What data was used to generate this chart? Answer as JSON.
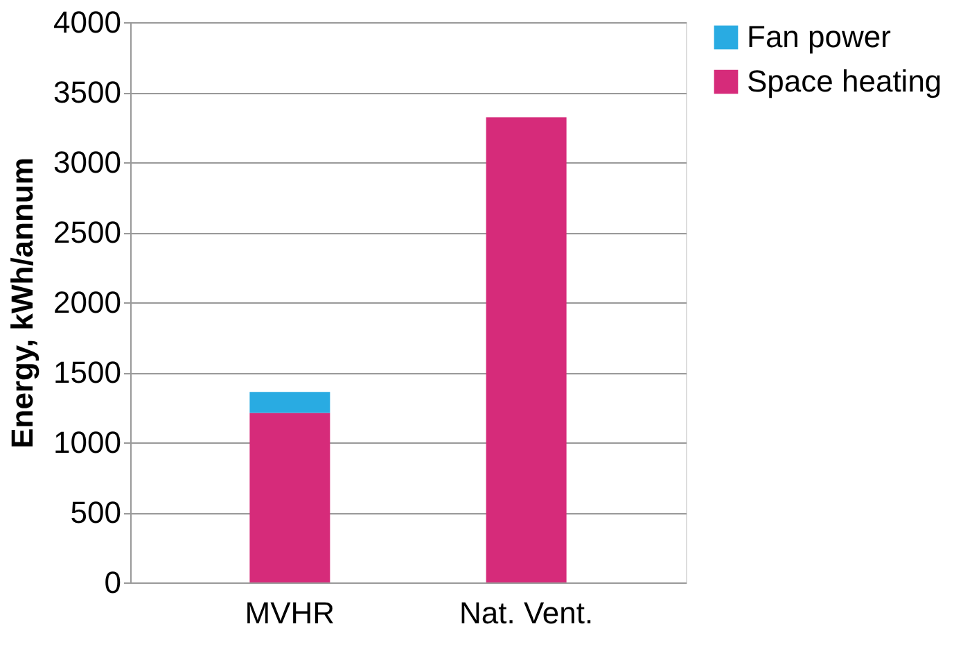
{
  "chart_data": {
    "type": "bar",
    "stacked": true,
    "ylabel": "Energy, kWh/annum",
    "categories": [
      "MVHR",
      "Nat. Vent."
    ],
    "series": [
      {
        "name": "Space heating",
        "color": "#d62b7a",
        "values": [
          1210,
          3320
        ]
      },
      {
        "name": "Fan power",
        "color": "#29abe2",
        "values": [
          150,
          null
        ]
      }
    ],
    "ylim": [
      0,
      4000
    ],
    "yticks": [
      0,
      500,
      1000,
      1500,
      2000,
      2500,
      3000,
      3500,
      4000
    ],
    "grid": "y",
    "legend": "right"
  }
}
